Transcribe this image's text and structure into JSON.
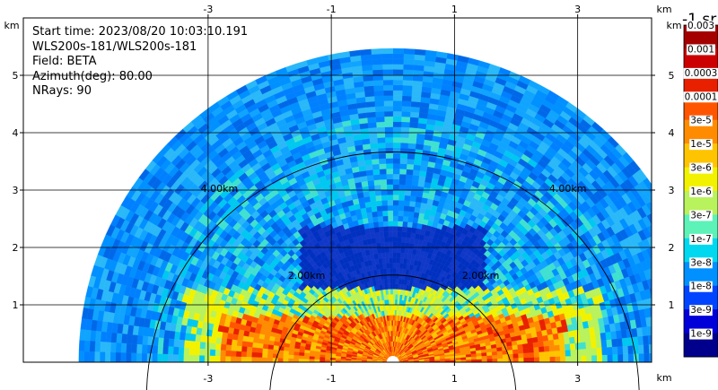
{
  "info": {
    "start_time": "Start time: 2023/08/20 10:03:10.191",
    "instrument": "WLS200s-181/WLS200s-181",
    "field": "Field: BETA",
    "azimuth": "Azimuth(deg): 80.00",
    "nrays": "NRays: 90"
  },
  "axes": {
    "unit": "km",
    "x_ticks": [
      "-3",
      "-1",
      "1",
      "3"
    ],
    "x_tick_values": [
      -3,
      -1,
      1,
      3
    ],
    "y_ticks": [
      "1",
      "2",
      "3",
      "4",
      "5"
    ],
    "y_tick_values": [
      1,
      2,
      3,
      4,
      5
    ],
    "xlim": [
      -6,
      4.2
    ],
    "ylim": [
      0,
      6.0
    ]
  },
  "range_rings": [
    {
      "radius_km": 2,
      "label": "2.00km"
    },
    {
      "radius_km": 4,
      "label": "4.00km"
    }
  ],
  "colorbar": {
    "title": "-1 sr",
    "labels": [
      "0.003",
      "0.001",
      "0.0003",
      "0.0001",
      "3e-5",
      "1e-5",
      "3e-6",
      "1e-6",
      "3e-7",
      "1e-7",
      "3e-8",
      "1e-8",
      "3e-9",
      "1e-9"
    ],
    "colors": [
      "#a40000",
      "#cc0000",
      "#e82000",
      "#ff5500",
      "#ff8c00",
      "#ffc400",
      "#f2f200",
      "#b8f25c",
      "#5cf2b8",
      "#00d8f0",
      "#0090ff",
      "#0044ff",
      "#0000d8",
      "#00008c"
    ]
  },
  "chart_data": {
    "type": "heatmap",
    "description_field": "BETA",
    "azimuth_deg": 80.0,
    "nrays": 90,
    "max_range_km": 5.1,
    "xlim": [
      -6,
      4.2
    ],
    "ylim": [
      0,
      6.0
    ],
    "scale": "log"
  }
}
